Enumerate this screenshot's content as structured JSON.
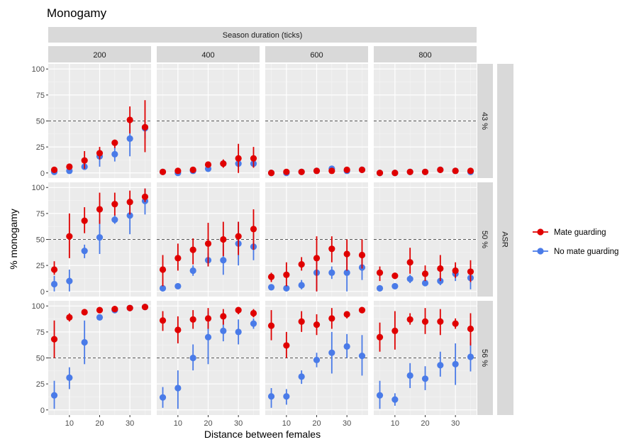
{
  "chart_data": {
    "type": "scatter",
    "title": "Monogamy",
    "xlabel": "Distance between females",
    "ylabel": "% monogamy",
    "col_strip_title": "Season duration (ticks)",
    "row_strip_title": "ASR",
    "columns": [
      "200",
      "400",
      "600",
      "800"
    ],
    "rows": [
      "43 %",
      "50 %",
      "56 %"
    ],
    "x": [
      5,
      10,
      15,
      20,
      25,
      30,
      35
    ],
    "x_ticks": [
      10,
      20,
      30
    ],
    "y_ticks": [
      0,
      25,
      50,
      75,
      100
    ],
    "xlim": [
      3,
      37
    ],
    "ylim": [
      0,
      100
    ],
    "reference_line_y": 50,
    "legend": {
      "position": "right",
      "entries": [
        {
          "name": "Mate guarding",
          "color": "#e00000"
        },
        {
          "name": "No mate guarding",
          "color": "#4a7be8"
        }
      ]
    },
    "panels": [
      {
        "row": "43 %",
        "col": "200",
        "mate_guarding": [
          [
            3,
            1,
            5
          ],
          [
            6,
            4,
            8
          ],
          [
            12,
            4,
            21
          ],
          [
            19,
            13,
            25
          ],
          [
            29,
            24,
            32
          ],
          [
            51,
            38,
            64
          ],
          [
            44,
            20,
            70
          ]
        ],
        "no_mate_guarding": [
          [
            1,
            0,
            2
          ],
          [
            2,
            0,
            4
          ],
          [
            6,
            4,
            8
          ],
          [
            16,
            6,
            23
          ],
          [
            18,
            11,
            25
          ],
          [
            33,
            16,
            48
          ],
          [
            43,
            33,
            48
          ]
        ]
      },
      {
        "row": "43 %",
        "col": "400",
        "mate_guarding": [
          [
            1,
            0,
            3
          ],
          [
            2,
            0,
            3
          ],
          [
            3,
            1,
            5
          ],
          [
            8,
            6,
            10
          ],
          [
            9,
            5,
            13
          ],
          [
            14,
            0,
            28
          ],
          [
            14,
            5,
            25
          ]
        ],
        "no_mate_guarding": [
          [
            1,
            0,
            2
          ],
          [
            0,
            0,
            1
          ],
          [
            2,
            1,
            4
          ],
          [
            4,
            2,
            6
          ],
          [
            9,
            7,
            12
          ],
          [
            9,
            5,
            13
          ],
          [
            9,
            7,
            12
          ]
        ]
      },
      {
        "row": "43 %",
        "col": "600",
        "mate_guarding": [
          [
            0,
            0,
            1
          ],
          [
            1,
            0,
            2
          ],
          [
            1,
            0,
            2
          ],
          [
            2,
            1,
            4
          ],
          [
            2,
            1,
            3
          ],
          [
            3,
            1,
            5
          ],
          [
            3,
            1,
            5
          ]
        ],
        "no_mate_guarding": [
          [
            0,
            0,
            1
          ],
          [
            0,
            0,
            1
          ],
          [
            1,
            0,
            2
          ],
          [
            2,
            1,
            3
          ],
          [
            4,
            2,
            6
          ],
          [
            2,
            1,
            4
          ],
          [
            3,
            1,
            5
          ]
        ]
      },
      {
        "row": "43 %",
        "col": "800",
        "mate_guarding": [
          [
            0,
            0,
            1
          ],
          [
            0,
            0,
            1
          ],
          [
            1,
            0,
            2
          ],
          [
            1,
            0,
            2
          ],
          [
            3,
            1,
            5
          ],
          [
            2,
            1,
            4
          ],
          [
            2,
            1,
            4
          ]
        ],
        "no_mate_guarding": [
          [
            0,
            0,
            1
          ],
          [
            0,
            0,
            1
          ],
          [
            1,
            0,
            2
          ],
          [
            1,
            0,
            2
          ],
          [
            3,
            1,
            5
          ],
          [
            2,
            1,
            4
          ],
          [
            1,
            0,
            3
          ]
        ]
      },
      {
        "row": "50 %",
        "col": "200",
        "mate_guarding": [
          [
            21,
            16,
            29
          ],
          [
            53,
            32,
            75
          ],
          [
            68,
            56,
            81
          ],
          [
            79,
            65,
            95
          ],
          [
            84,
            73,
            95
          ],
          [
            86,
            74,
            97
          ],
          [
            91,
            86,
            99
          ]
        ],
        "no_mate_guarding": [
          [
            7,
            0,
            15
          ],
          [
            10,
            0,
            21
          ],
          [
            39,
            32,
            45
          ],
          [
            52,
            36,
            69
          ],
          [
            69,
            65,
            74
          ],
          [
            73,
            55,
            90
          ],
          [
            87,
            74,
            99
          ]
        ]
      },
      {
        "row": "50 %",
        "col": "400",
        "mate_guarding": [
          [
            21,
            5,
            35
          ],
          [
            32,
            20,
            46
          ],
          [
            40,
            26,
            51
          ],
          [
            46,
            24,
            66
          ],
          [
            50,
            34,
            67
          ],
          [
            53,
            35,
            67
          ],
          [
            60,
            40,
            79
          ]
        ],
        "no_mate_guarding": [
          [
            3,
            1,
            5
          ],
          [
            5,
            3,
            7
          ],
          [
            20,
            15,
            25
          ],
          [
            30,
            24,
            37
          ],
          [
            30,
            16,
            45
          ],
          [
            46,
            25,
            67
          ],
          [
            43,
            30,
            55
          ]
        ]
      },
      {
        "row": "50 %",
        "col": "600",
        "mate_guarding": [
          [
            14,
            9,
            18
          ],
          [
            16,
            5,
            28
          ],
          [
            26,
            20,
            33
          ],
          [
            32,
            0,
            53
          ],
          [
            41,
            28,
            53
          ],
          [
            36,
            20,
            50
          ],
          [
            35,
            22,
            50
          ]
        ],
        "no_mate_guarding": [
          [
            4,
            2,
            6
          ],
          [
            3,
            1,
            5
          ],
          [
            6,
            2,
            11
          ],
          [
            18,
            0,
            35
          ],
          [
            18,
            12,
            24
          ],
          [
            18,
            0,
            35
          ],
          [
            23,
            11,
            35
          ]
        ]
      },
      {
        "row": "50 %",
        "col": "800",
        "mate_guarding": [
          [
            18,
            10,
            24
          ],
          [
            15,
            12,
            18
          ],
          [
            28,
            17,
            42
          ],
          [
            17,
            10,
            25
          ],
          [
            22,
            10,
            35
          ],
          [
            20,
            13,
            28
          ],
          [
            19,
            9,
            30
          ]
        ],
        "no_mate_guarding": [
          [
            3,
            1,
            5
          ],
          [
            5,
            3,
            7
          ],
          [
            12,
            8,
            16
          ],
          [
            8,
            5,
            11
          ],
          [
            10,
            6,
            14
          ],
          [
            17,
            10,
            25
          ],
          [
            13,
            2,
            22
          ]
        ]
      },
      {
        "row": "56 %",
        "col": "200",
        "mate_guarding": [
          [
            68,
            50,
            86
          ],
          [
            89,
            85,
            93
          ],
          [
            94,
            91,
            97
          ],
          [
            96,
            94,
            98
          ],
          [
            97,
            95,
            99
          ],
          [
            98,
            96,
            100
          ],
          [
            99,
            98,
            100
          ]
        ],
        "no_mate_guarding": [
          [
            14,
            1,
            28
          ],
          [
            31,
            20,
            41
          ],
          [
            65,
            44,
            86
          ],
          [
            89,
            87,
            91
          ],
          [
            96,
            94,
            98
          ],
          [
            98,
            96,
            100
          ],
          [
            99,
            98,
            100
          ]
        ]
      },
      {
        "row": "56 %",
        "col": "400",
        "mate_guarding": [
          [
            86,
            76,
            95
          ],
          [
            77,
            64,
            90
          ],
          [
            87,
            78,
            96
          ],
          [
            88,
            78,
            98
          ],
          [
            90,
            82,
            97
          ],
          [
            96,
            92,
            99
          ],
          [
            93,
            89,
            97
          ]
        ],
        "no_mate_guarding": [
          [
            12,
            2,
            22
          ],
          [
            21,
            1,
            38
          ],
          [
            50,
            38,
            63
          ],
          [
            70,
            44,
            95
          ],
          [
            76,
            66,
            87
          ],
          [
            75,
            63,
            87
          ],
          [
            83,
            78,
            88
          ]
        ]
      },
      {
        "row": "56 %",
        "col": "600",
        "mate_guarding": [
          [
            81,
            67,
            96
          ],
          [
            62,
            50,
            75
          ],
          [
            85,
            75,
            95
          ],
          [
            82,
            72,
            92
          ],
          [
            88,
            78,
            98
          ],
          [
            92,
            88,
            95
          ],
          [
            96,
            94,
            98
          ]
        ],
        "no_mate_guarding": [
          [
            13,
            2,
            21
          ],
          [
            13,
            5,
            20
          ],
          [
            32,
            25,
            38
          ],
          [
            48,
            41,
            55
          ],
          [
            55,
            35,
            75
          ],
          [
            61,
            50,
            73
          ],
          [
            52,
            33,
            72
          ]
        ]
      },
      {
        "row": "56 %",
        "col": "800",
        "mate_guarding": [
          [
            70,
            56,
            84
          ],
          [
            76,
            58,
            95
          ],
          [
            87,
            82,
            93
          ],
          [
            85,
            73,
            98
          ],
          [
            85,
            72,
            97
          ],
          [
            83,
            78,
            88
          ],
          [
            78,
            62,
            93
          ]
        ],
        "no_mate_guarding": [
          [
            14,
            1,
            28
          ],
          [
            10,
            4,
            16
          ],
          [
            33,
            21,
            45
          ],
          [
            30,
            19,
            42
          ],
          [
            43,
            32,
            56
          ],
          [
            44,
            24,
            64
          ],
          [
            51,
            37,
            65
          ]
        ]
      }
    ]
  }
}
